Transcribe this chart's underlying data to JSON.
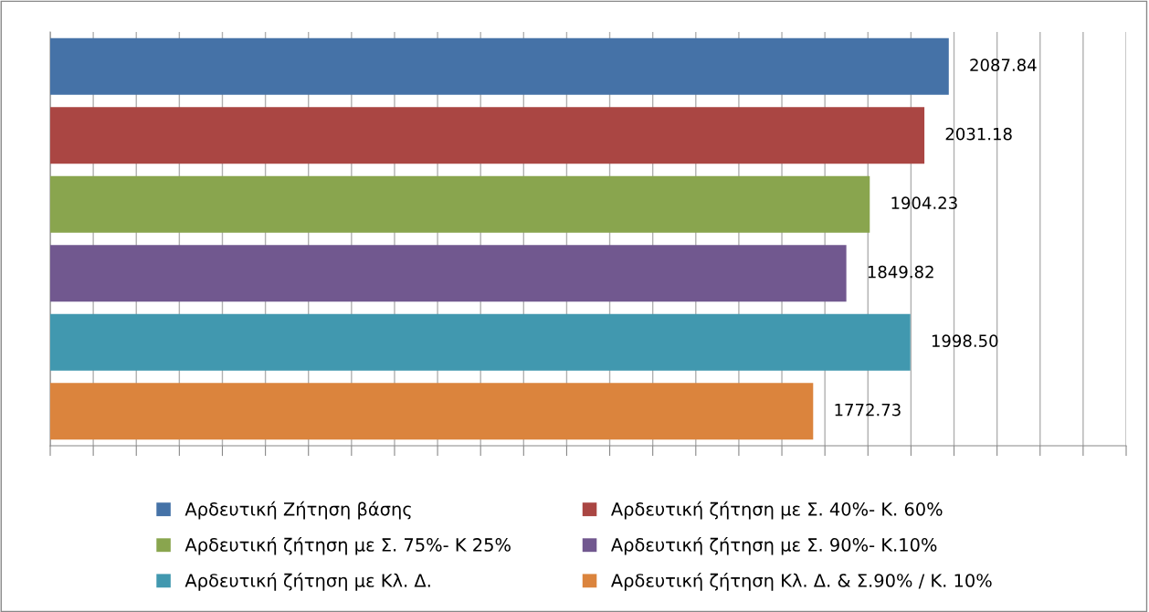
{
  "chart_data": {
    "type": "bar",
    "orientation": "horizontal",
    "categories": [
      null
    ],
    "series": [
      {
        "name": "Αρδευτική Ζήτηση βάσης",
        "color": "#4572a7",
        "values": [
          2087.84
        ],
        "value_labels": [
          "2087.84"
        ]
      },
      {
        "name": "Αρδευτική ζήτηση με Σ. 40%- Κ. 60%",
        "color": "#aa4643",
        "values": [
          2031.18
        ],
        "value_labels": [
          "2031.18"
        ]
      },
      {
        "name": "Αρδευτική ζήτηση με Σ. 75%- Κ 25%",
        "color": "#89a54e",
        "values": [
          1904.23
        ],
        "value_labels": [
          "1904.23"
        ]
      },
      {
        "name": "Αρδευτική ζήτηση με Σ. 90%- Κ.10%",
        "color": "#71588f",
        "values": [
          1849.82
        ],
        "value_labels": [
          "1849.82"
        ]
      },
      {
        "name": "Αρδευτική ζήτηση με Κλ. Δ.",
        "color": "#4198af",
        "values": [
          1998.5
        ],
        "value_labels": [
          "1998.50"
        ]
      },
      {
        "name": "Αρδευτική ζήτηση Κλ. Δ. & Σ.90% / Κ. 10%",
        "color": "#db843d",
        "values": [
          1772.73
        ],
        "value_labels": [
          "1772.73"
        ]
      }
    ],
    "xlim": [
      0,
      2500
    ],
    "xticks": [
      {
        "value": 0,
        "label": null
      },
      {
        "value": 100,
        "label": null
      },
      {
        "value": 200,
        "label": null
      },
      {
        "value": 300,
        "label": null
      },
      {
        "value": 400,
        "label": null
      },
      {
        "value": 500,
        "label": null
      },
      {
        "value": 600,
        "label": null
      },
      {
        "value": 700,
        "label": null
      },
      {
        "value": 800,
        "label": null
      },
      {
        "value": 900,
        "label": null
      },
      {
        "value": 1000,
        "label": null
      },
      {
        "value": 1100,
        "label": null
      },
      {
        "value": 1200,
        "label": null
      },
      {
        "value": 1300,
        "label": null
      },
      {
        "value": 1400,
        "label": null
      },
      {
        "value": 1500,
        "label": null
      },
      {
        "value": 1600,
        "label": null
      },
      {
        "value": 1700,
        "label": null
      },
      {
        "value": 1800,
        "label": null
      },
      {
        "value": 1900,
        "label": null
      },
      {
        "value": 2000,
        "label": null
      },
      {
        "value": 2100,
        "label": null
      },
      {
        "value": 2200,
        "label": null
      },
      {
        "value": 2300,
        "label": null
      },
      {
        "value": 2400,
        "label": null
      },
      {
        "value": 2500,
        "label": null
      }
    ],
    "grid": "x",
    "legend": "bottom"
  }
}
